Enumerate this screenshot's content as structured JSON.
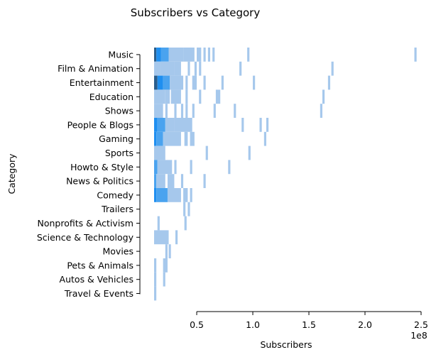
{
  "chart_data": {
    "type": "heatmap",
    "title": "Subscribers vs Category",
    "xlabel": "Subscribers",
    "ylabel": "Category",
    "x_scale_label": "1e8",
    "xlim": [
      0.12,
      2.5
    ],
    "x_ticks": [
      0.5,
      1.0,
      1.5,
      2.0,
      2.5
    ],
    "x_tick_labels": [
      "0.5",
      "1.0",
      "1.5",
      "2.0",
      "2.5"
    ],
    "grid": false,
    "legend": "none",
    "colors": {
      "light": "#a6c8ec",
      "mid": "#4aa3ef",
      "bright": "#1f8ff0",
      "dark": "#2a5e8c"
    },
    "categories": [
      "Music",
      "Film & Animation",
      "Entertainment",
      "Education",
      "Shows",
      "People & Blogs",
      "Gaming",
      "Sports",
      "Howto & Style",
      "News & Politics",
      "Comedy",
      "Trailers",
      "Nonprofits & Activism",
      "Science & Technology",
      "Movies",
      "Pets & Animals",
      "Autos & Vehicles",
      "Travel & Events"
    ],
    "series": [
      {
        "category": "Music",
        "cells": [
          [
            0.12,
            0.14,
            "dark"
          ],
          [
            0.14,
            0.18,
            "bright"
          ],
          [
            0.18,
            0.25,
            "mid"
          ],
          [
            0.25,
            0.38,
            "light"
          ],
          [
            0.38,
            0.48,
            "light"
          ],
          [
            0.5,
            0.54,
            "light"
          ],
          [
            0.56,
            0.58,
            "light"
          ],
          [
            0.6,
            0.62,
            "light"
          ],
          [
            0.64,
            0.66,
            "light"
          ],
          [
            0.95,
            0.97,
            "light"
          ],
          [
            2.44,
            2.46,
            "light"
          ]
        ]
      },
      {
        "category": "Film & Animation",
        "cells": [
          [
            0.12,
            0.18,
            "light"
          ],
          [
            0.18,
            0.3,
            "light"
          ],
          [
            0.3,
            0.36,
            "light"
          ],
          [
            0.42,
            0.44,
            "light"
          ],
          [
            0.48,
            0.5,
            "light"
          ],
          [
            0.52,
            0.54,
            "light"
          ],
          [
            0.88,
            0.9,
            "light"
          ],
          [
            1.7,
            1.72,
            "light"
          ]
        ]
      },
      {
        "category": "Entertainment",
        "cells": [
          [
            0.12,
            0.15,
            "dark"
          ],
          [
            0.15,
            0.2,
            "bright"
          ],
          [
            0.2,
            0.26,
            "mid"
          ],
          [
            0.26,
            0.38,
            "light"
          ],
          [
            0.4,
            0.42,
            "light"
          ],
          [
            0.46,
            0.5,
            "light"
          ],
          [
            0.56,
            0.58,
            "light"
          ],
          [
            0.72,
            0.74,
            "light"
          ],
          [
            1.0,
            1.02,
            "light"
          ],
          [
            1.67,
            1.69,
            "light"
          ]
        ]
      },
      {
        "category": "Education",
        "cells": [
          [
            0.12,
            0.22,
            "light"
          ],
          [
            0.22,
            0.26,
            "light"
          ],
          [
            0.27,
            0.36,
            "light"
          ],
          [
            0.4,
            0.42,
            "light"
          ],
          [
            0.52,
            0.54,
            "light"
          ],
          [
            0.67,
            0.71,
            "light"
          ],
          [
            1.62,
            1.64,
            "light"
          ]
        ]
      },
      {
        "category": "Shows",
        "cells": [
          [
            0.12,
            0.2,
            "light"
          ],
          [
            0.22,
            0.24,
            "light"
          ],
          [
            0.3,
            0.32,
            "light"
          ],
          [
            0.36,
            0.38,
            "light"
          ],
          [
            0.4,
            0.42,
            "light"
          ],
          [
            0.46,
            0.48,
            "light"
          ],
          [
            0.65,
            0.67,
            "light"
          ],
          [
            0.83,
            0.85,
            "light"
          ],
          [
            1.6,
            1.62,
            "light"
          ]
        ]
      },
      {
        "category": "People & Blogs",
        "cells": [
          [
            0.12,
            0.15,
            "bright"
          ],
          [
            0.15,
            0.22,
            "mid"
          ],
          [
            0.22,
            0.3,
            "light"
          ],
          [
            0.3,
            0.46,
            "light"
          ],
          [
            0.9,
            0.92,
            "light"
          ],
          [
            1.06,
            1.08,
            "light"
          ],
          [
            1.12,
            1.14,
            "light"
          ]
        ]
      },
      {
        "category": "Gaming",
        "cells": [
          [
            0.12,
            0.14,
            "bright"
          ],
          [
            0.14,
            0.2,
            "mid"
          ],
          [
            0.2,
            0.36,
            "light"
          ],
          [
            0.39,
            0.42,
            "light"
          ],
          [
            0.44,
            0.48,
            "light"
          ],
          [
            1.1,
            1.12,
            "light"
          ]
        ]
      },
      {
        "category": "Sports",
        "cells": [
          [
            0.12,
            0.22,
            "light"
          ],
          [
            0.58,
            0.6,
            "light"
          ],
          [
            0.96,
            0.98,
            "light"
          ]
        ]
      },
      {
        "category": "Howto & Style",
        "cells": [
          [
            0.12,
            0.15,
            "mid"
          ],
          [
            0.15,
            0.28,
            "light"
          ],
          [
            0.3,
            0.32,
            "light"
          ],
          [
            0.44,
            0.46,
            "light"
          ],
          [
            0.78,
            0.8,
            "light"
          ]
        ]
      },
      {
        "category": "News & Politics",
        "cells": [
          [
            0.12,
            0.14,
            "mid"
          ],
          [
            0.14,
            0.22,
            "light"
          ],
          [
            0.24,
            0.3,
            "light"
          ],
          [
            0.36,
            0.38,
            "light"
          ],
          [
            0.56,
            0.58,
            "light"
          ]
        ]
      },
      {
        "category": "Comedy",
        "cells": [
          [
            0.12,
            0.14,
            "bright"
          ],
          [
            0.14,
            0.24,
            "mid"
          ],
          [
            0.24,
            0.36,
            "light"
          ],
          [
            0.38,
            0.42,
            "light"
          ],
          [
            0.44,
            0.46,
            "light"
          ]
        ]
      },
      {
        "category": "Trailers",
        "cells": [
          [
            0.38,
            0.4,
            "light"
          ],
          [
            0.42,
            0.44,
            "light"
          ]
        ]
      },
      {
        "category": "Nonprofits & Activism",
        "cells": [
          [
            0.15,
            0.17,
            "light"
          ],
          [
            0.39,
            0.41,
            "light"
          ]
        ]
      },
      {
        "category": "Science & Technology",
        "cells": [
          [
            0.12,
            0.25,
            "light"
          ],
          [
            0.31,
            0.33,
            "light"
          ]
        ]
      },
      {
        "category": "Movies",
        "cells": [
          [
            0.22,
            0.24,
            "light"
          ],
          [
            0.25,
            0.27,
            "light"
          ]
        ]
      },
      {
        "category": "Pets & Animals",
        "cells": [
          [
            0.12,
            0.14,
            "light"
          ],
          [
            0.2,
            0.24,
            "light"
          ]
        ]
      },
      {
        "category": "Autos & Vehicles",
        "cells": [
          [
            0.12,
            0.14,
            "light"
          ],
          [
            0.2,
            0.22,
            "light"
          ]
        ]
      },
      {
        "category": "Travel & Events",
        "cells": [
          [
            0.12,
            0.14,
            "light"
          ]
        ]
      }
    ]
  }
}
